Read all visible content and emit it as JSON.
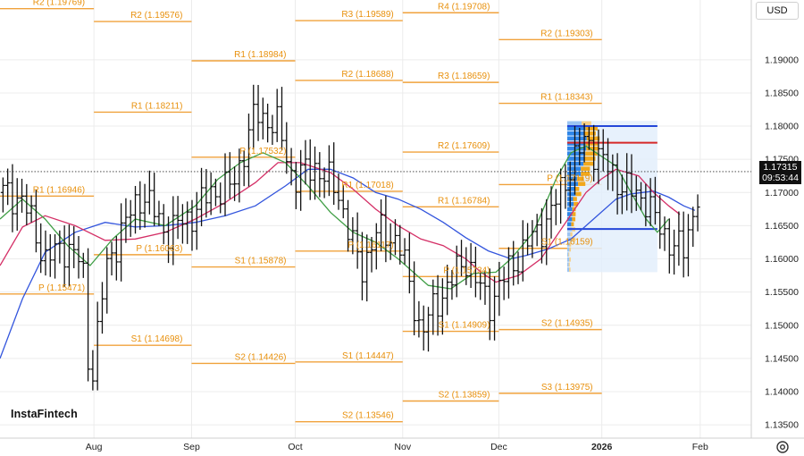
{
  "currency_selector": {
    "value": "USD"
  },
  "last_price": {
    "price": "1.17315",
    "countdown": "09:53:44"
  },
  "watermark": "InstaFintech",
  "chart_data": {
    "type": "candlestick",
    "title": "",
    "xlabel": "",
    "ylabel": "",
    "ylim": [
      1.133,
      1.199
    ],
    "yticks": [
      "1.19000",
      "1.18500",
      "1.18000",
      "1.17500",
      "1.17000",
      "1.16500",
      "1.16000",
      "1.15500",
      "1.15000",
      "1.14500",
      "1.14000",
      "1.13500"
    ],
    "xticks": [
      {
        "label": "Aug",
        "pos": 0.125,
        "bold": false
      },
      {
        "label": "Sep",
        "pos": 0.255,
        "bold": false
      },
      {
        "label": "Oct",
        "pos": 0.393,
        "bold": false
      },
      {
        "label": "Nov",
        "pos": 0.536,
        "bold": false
      },
      {
        "label": "Dec",
        "pos": 0.664,
        "bold": false
      },
      {
        "label": "2026",
        "pos": 0.801,
        "bold": true
      },
      {
        "label": "Feb",
        "pos": 0.932,
        "bold": false
      }
    ],
    "last_price": 1.17315,
    "pivot_levels": [
      {
        "label": "R2 (1.19769)",
        "value": 1.19769,
        "from": 0.0,
        "to": 0.125
      },
      {
        "label": "R1 (1.16946)",
        "value": 1.16946,
        "from": 0.0,
        "to": 0.125
      },
      {
        "label": "P (1.15471)",
        "value": 1.15471,
        "from": 0.0,
        "to": 0.125
      },
      {
        "label": "R2 (1.19576)",
        "value": 1.19576,
        "from": 0.125,
        "to": 0.255
      },
      {
        "label": "R1 (1.18211)",
        "value": 1.18211,
        "from": 0.125,
        "to": 0.255
      },
      {
        "label": "P (1.16063)",
        "value": 1.16063,
        "from": 0.125,
        "to": 0.255
      },
      {
        "label": "S1 (1.14698)",
        "value": 1.14698,
        "from": 0.125,
        "to": 0.255
      },
      {
        "label": "R1 (1.18984)",
        "value": 1.18984,
        "from": 0.255,
        "to": 0.393
      },
      {
        "label": "P (1.17532)",
        "value": 1.17532,
        "from": 0.255,
        "to": 0.393
      },
      {
        "label": "S1 (1.15878)",
        "value": 1.15878,
        "from": 0.255,
        "to": 0.393
      },
      {
        "label": "S2 (1.14426)",
        "value": 1.14426,
        "from": 0.255,
        "to": 0.393
      },
      {
        "label": "R3 (1.19589)",
        "value": 1.19589,
        "from": 0.393,
        "to": 0.536
      },
      {
        "label": "R2 (1.18688)",
        "value": 1.18688,
        "from": 0.393,
        "to": 0.536
      },
      {
        "label": "R1 (1.17018)",
        "value": 1.17018,
        "from": 0.393,
        "to": 0.536
      },
      {
        "label": "P (1.16117)",
        "value": 1.16117,
        "from": 0.393,
        "to": 0.536
      },
      {
        "label": "S1 (1.14447)",
        "value": 1.14447,
        "from": 0.393,
        "to": 0.536
      },
      {
        "label": "S2 (1.13546)",
        "value": 1.13546,
        "from": 0.393,
        "to": 0.536
      },
      {
        "label": "R4 (1.19708)",
        "value": 1.19708,
        "from": 0.536,
        "to": 0.664
      },
      {
        "label": "R3 (1.18659)",
        "value": 1.18659,
        "from": 0.536,
        "to": 0.664
      },
      {
        "label": "R2 (1.17609)",
        "value": 1.17609,
        "from": 0.536,
        "to": 0.664
      },
      {
        "label": "R1 (1.16784)",
        "value": 1.16784,
        "from": 0.536,
        "to": 0.664
      },
      {
        "label": "P (1.15734)",
        "value": 1.15734,
        "from": 0.536,
        "to": 0.664
      },
      {
        "label": "S1 (1.14909)",
        "value": 1.14909,
        "from": 0.536,
        "to": 0.664
      },
      {
        "label": "S2 (1.13859)",
        "value": 1.13859,
        "from": 0.536,
        "to": 0.664
      },
      {
        "label": "R2 (1.19303)",
        "value": 1.19303,
        "from": 0.664,
        "to": 0.801
      },
      {
        "label": "R1 (1.18343)",
        "value": 1.18343,
        "from": 0.664,
        "to": 0.801
      },
      {
        "label": "P (1.17119)",
        "value": 1.17119,
        "from": 0.664,
        "to": 0.801
      },
      {
        "label": "S1 (1.16159)",
        "value": 1.16159,
        "from": 0.664,
        "to": 0.801
      },
      {
        "label": "S2 (1.14935)",
        "value": 1.14935,
        "from": 0.664,
        "to": 0.801
      },
      {
        "label": "S3 (1.13975)",
        "value": 1.13975,
        "from": 0.664,
        "to": 0.801
      }
    ],
    "volume_profile": {
      "from": 0.755,
      "to": 0.875,
      "range": [
        1.158,
        1.1808
      ],
      "poc": 1.1775,
      "value_area_high": 1.18,
      "value_area_low": 1.1645
    },
    "moving_averages": [
      {
        "color": "#3355dd",
        "points": [
          [
            0.0,
            1.145
          ],
          [
            0.03,
            1.154
          ],
          [
            0.06,
            1.161
          ],
          [
            0.1,
            1.164
          ],
          [
            0.14,
            1.1655
          ],
          [
            0.18,
            1.1648
          ],
          [
            0.22,
            1.165
          ],
          [
            0.26,
            1.1655
          ],
          [
            0.3,
            1.1665
          ],
          [
            0.34,
            1.168
          ],
          [
            0.38,
            1.171
          ],
          [
            0.41,
            1.1735
          ],
          [
            0.44,
            1.1735
          ],
          [
            0.47,
            1.1722
          ],
          [
            0.5,
            1.17
          ],
          [
            0.53,
            1.169
          ],
          [
            0.56,
            1.1675
          ],
          [
            0.59,
            1.1655
          ],
          [
            0.62,
            1.1632
          ],
          [
            0.65,
            1.1612
          ],
          [
            0.68,
            1.16
          ],
          [
            0.7,
            1.1605
          ],
          [
            0.73,
            1.1615
          ],
          [
            0.76,
            1.163
          ],
          [
            0.79,
            1.166
          ],
          [
            0.82,
            1.169
          ],
          [
            0.84,
            1.1698
          ],
          [
            0.87,
            1.1702
          ],
          [
            0.89,
            1.1693
          ],
          [
            0.91,
            1.168
          ],
          [
            0.925,
            1.1673
          ]
        ]
      },
      {
        "color": "#d42f66",
        "points": [
          [
            0.0,
            1.159
          ],
          [
            0.03,
            1.1648
          ],
          [
            0.06,
            1.1665
          ],
          [
            0.1,
            1.165
          ],
          [
            0.14,
            1.1628
          ],
          [
            0.18,
            1.163
          ],
          [
            0.22,
            1.164
          ],
          [
            0.26,
            1.166
          ],
          [
            0.3,
            1.1685
          ],
          [
            0.34,
            1.1715
          ],
          [
            0.37,
            1.1745
          ],
          [
            0.4,
            1.1745
          ],
          [
            0.44,
            1.173
          ],
          [
            0.47,
            1.1705
          ],
          [
            0.5,
            1.1675
          ],
          [
            0.53,
            1.165
          ],
          [
            0.56,
            1.163
          ],
          [
            0.59,
            1.162
          ],
          [
            0.62,
            1.16
          ],
          [
            0.64,
            1.158
          ],
          [
            0.66,
            1.1565
          ],
          [
            0.69,
            1.1575
          ],
          [
            0.72,
            1.16
          ],
          [
            0.75,
            1.165
          ],
          [
            0.78,
            1.17
          ],
          [
            0.8,
            1.172
          ],
          [
            0.82,
            1.1735
          ],
          [
            0.85,
            1.1725
          ],
          [
            0.87,
            1.17
          ],
          [
            0.89,
            1.168
          ],
          [
            0.905,
            1.1667
          ]
        ]
      },
      {
        "color": "#3f9e45",
        "points": [
          [
            0.0,
            1.166
          ],
          [
            0.03,
            1.169
          ],
          [
            0.06,
            1.166
          ],
          [
            0.09,
            1.162
          ],
          [
            0.12,
            1.159
          ],
          [
            0.15,
            1.163
          ],
          [
            0.18,
            1.166
          ],
          [
            0.22,
            1.165
          ],
          [
            0.26,
            1.168
          ],
          [
            0.29,
            1.172
          ],
          [
            0.32,
            1.1745
          ],
          [
            0.35,
            1.176
          ],
          [
            0.38,
            1.1745
          ],
          [
            0.41,
            1.171
          ],
          [
            0.44,
            1.167
          ],
          [
            0.47,
            1.164
          ],
          [
            0.5,
            1.1625
          ],
          [
            0.53,
            1.16
          ],
          [
            0.55,
            1.158
          ],
          [
            0.57,
            1.156
          ],
          [
            0.6,
            1.1555
          ],
          [
            0.63,
            1.1578
          ],
          [
            0.66,
            1.158
          ],
          [
            0.68,
            1.16
          ],
          [
            0.71,
            1.164
          ],
          [
            0.74,
            1.172
          ],
          [
            0.76,
            1.176
          ],
          [
            0.78,
            1.177
          ],
          [
            0.8,
            1.1755
          ],
          [
            0.82,
            1.174
          ],
          [
            0.84,
            1.17
          ],
          [
            0.86,
            1.166
          ],
          [
            0.875,
            1.164
          ],
          [
            0.89,
            1.166
          ]
        ]
      }
    ],
    "series": [
      {
        "name": "",
        "bars": []
      }
    ]
  }
}
